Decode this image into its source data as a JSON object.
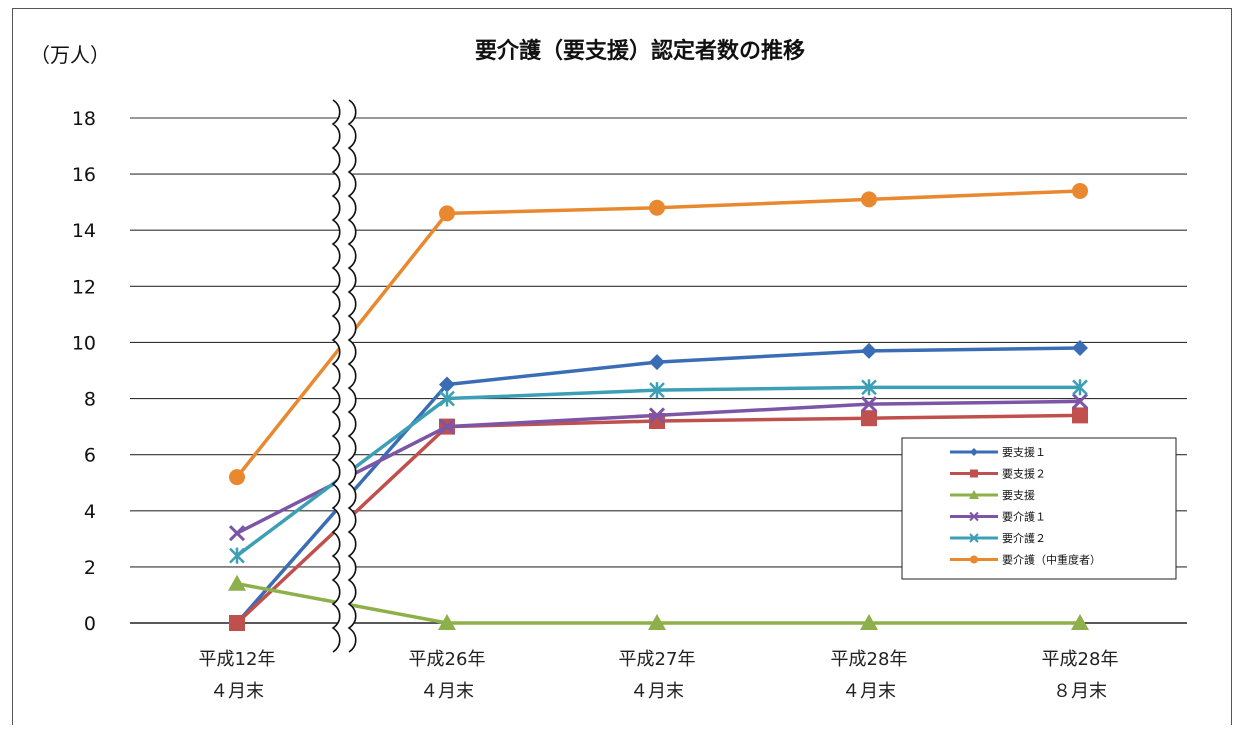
{
  "chart_data": {
    "type": "line",
    "title": "要介護（要支援）認定者数の推移",
    "unit_label": "（万人）",
    "categories": [
      [
        "平成12年",
        "４月末"
      ],
      [
        "平成26年",
        "４月末"
      ],
      [
        "平成27年",
        "４月末"
      ],
      [
        "平成28年",
        "４月末"
      ],
      [
        "平成28年",
        "８月末"
      ]
    ],
    "ylim": [
      0,
      18
    ],
    "yticks": [
      0,
      2,
      4,
      6,
      8,
      10,
      12,
      14,
      16,
      18
    ],
    "grid": true,
    "axis_break_after_category": 0,
    "legend_position": "right",
    "series": [
      {
        "name": "要支援１",
        "color": "#3a6db5",
        "marker": "diamond",
        "values": [
          0.0,
          8.5,
          9.3,
          9.7,
          9.8
        ]
      },
      {
        "name": "要支援２",
        "color": "#c0504d",
        "marker": "square",
        "values": [
          0.0,
          7.0,
          7.2,
          7.3,
          7.4
        ]
      },
      {
        "name": "要支援",
        "color": "#8db04a",
        "marker": "triangle",
        "values": [
          1.4,
          0.0,
          0.0,
          0.0,
          0.0
        ]
      },
      {
        "name": "要介護１",
        "color": "#7d55a6",
        "marker": "x",
        "values": [
          3.2,
          7.0,
          7.4,
          7.8,
          7.9
        ]
      },
      {
        "name": "要介護２",
        "color": "#3c9fb5",
        "marker": "star",
        "values": [
          2.4,
          8.0,
          8.3,
          8.4,
          8.4
        ]
      },
      {
        "name": "要介護（中重度者）",
        "color": "#e8892f",
        "marker": "circle",
        "values": [
          5.2,
          14.6,
          14.8,
          15.1,
          15.4
        ]
      }
    ]
  }
}
